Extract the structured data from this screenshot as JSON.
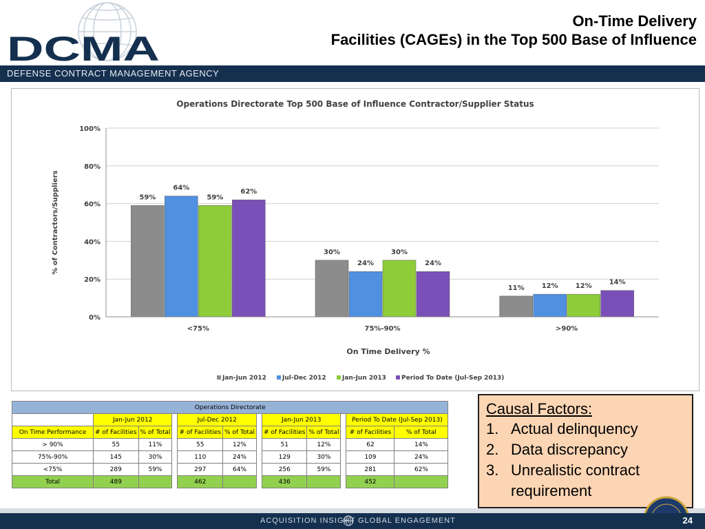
{
  "header": {
    "logo_text": "DCMA",
    "title_line1": "On-Time Delivery",
    "title_line2": "Facilities (CAGEs) in the Top 500 Base of Influence",
    "agency_name": "DEFENSE CONTRACT MANAGEMENT AGENCY"
  },
  "chart_data": {
    "type": "bar",
    "title": "Operations Directorate Top 500 Base of Influence Contractor/Supplier Status",
    "xlabel": "On Time Delivery %",
    "ylabel": "% of Contractors/Suppliers",
    "categories": [
      "<75%",
      "75%-90%",
      ">90%"
    ],
    "ylim": [
      0,
      100
    ],
    "yticks": [
      "0%",
      "20%",
      "40%",
      "60%",
      "80%",
      "100%"
    ],
    "grid": true,
    "legend_position": "bottom",
    "series": [
      {
        "name": "Jan-Jun 2012",
        "color": "#8c8c8c",
        "values": [
          59,
          30,
          11
        ],
        "labels": [
          "59%",
          "30%",
          "11%"
        ]
      },
      {
        "name": "Jul-Dec 2012",
        "color": "#4f90e0",
        "values": [
          64,
          24,
          12
        ],
        "labels": [
          "64%",
          "24%",
          "12%"
        ]
      },
      {
        "name": "Jan-Jun 2013",
        "color": "#8fcc3a",
        "values": [
          59,
          30,
          12
        ],
        "labels": [
          "59%",
          "30%",
          "12%"
        ]
      },
      {
        "name": "Period To Date (Jul-Sep 2013)",
        "color": "#7b4fb8",
        "values": [
          62,
          24,
          14
        ],
        "labels": [
          "62%",
          "24%",
          "14%"
        ]
      }
    ]
  },
  "table": {
    "title": "Operations Directorate",
    "periods": [
      "Jan-Jun 2012",
      "Jul-Dec 2012",
      "Jan-Jun 2013",
      "Period To Date (Jul-Sep 2013)"
    ],
    "row_header": "On Time Performance",
    "col_facilities": "# of Facilities",
    "col_pct": "% of Total",
    "rows": [
      {
        "label": "> 90%",
        "cells": [
          "55",
          "11%",
          "55",
          "12%",
          "51",
          "12%",
          "62",
          "14%"
        ]
      },
      {
        "label": "75%-90%",
        "cells": [
          "145",
          "30%",
          "110",
          "24%",
          "129",
          "30%",
          "109",
          "24%"
        ]
      },
      {
        "label": "<75%",
        "cells": [
          "289",
          "59%",
          "297",
          "64%",
          "256",
          "59%",
          "281",
          "62%"
        ]
      }
    ],
    "total": {
      "label": "Total",
      "cells": [
        "489",
        "",
        "462",
        "",
        "436",
        "",
        "452",
        ""
      ]
    }
  },
  "causal": {
    "title": "Causal Factors:",
    "items": [
      {
        "num": "1.",
        "text": "Actual delinquency"
      },
      {
        "num": "2.",
        "text": "Data discrepancy"
      },
      {
        "num": "3.",
        "text": "Unrealistic contract requirement"
      }
    ]
  },
  "footer": {
    "left": "ACQUISITION INSIGHT",
    "right": "GLOBAL ENGAGEMENT",
    "page_number": "24"
  }
}
